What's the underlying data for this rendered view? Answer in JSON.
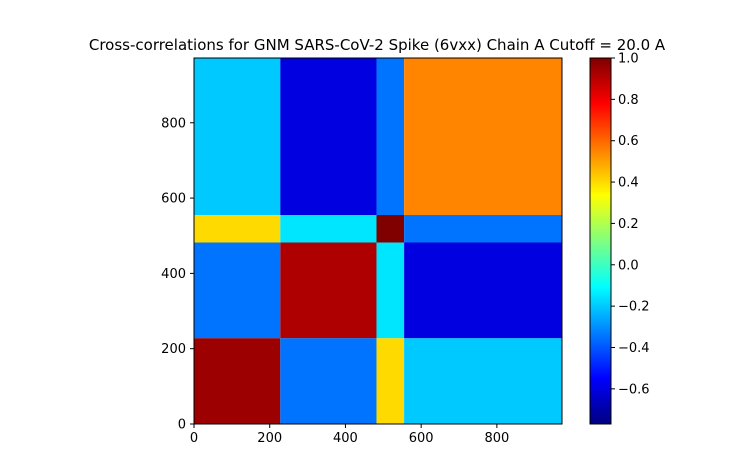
{
  "chart_data": {
    "type": "heatmap",
    "title": "Cross-correlations for GNM SARS-CoV-2 Spike (6vxx) Chain A Cutoff = 20.0 A",
    "xlabel": "",
    "ylabel": "",
    "xlim": [
      0,
      972
    ],
    "ylim": [
      0,
      972
    ],
    "x_ticks": [
      "0",
      "200",
      "400",
      "600",
      "800"
    ],
    "y_ticks": [
      "0",
      "200",
      "400",
      "600",
      "800"
    ],
    "colormap": "jet",
    "colorbar": {
      "vmin": -0.77,
      "vmax": 1.0,
      "ticks": [
        "1.0",
        "0.8",
        "0.6",
        "0.4",
        "0.2",
        "0.0",
        "−0.2",
        "−0.4",
        "−0.6"
      ]
    },
    "domain_boundaries": [
      0,
      228,
      482,
      555,
      972
    ],
    "block_correlations": [
      [
        0.95,
        -0.35,
        0.4,
        -0.2
      ],
      [
        -0.35,
        0.92,
        -0.15,
        -0.6
      ],
      [
        0.4,
        -0.15,
        1.0,
        -0.35
      ],
      [
        -0.2,
        -0.6,
        -0.35,
        0.55
      ]
    ],
    "grid": false,
    "legend": "colorbar-right"
  }
}
